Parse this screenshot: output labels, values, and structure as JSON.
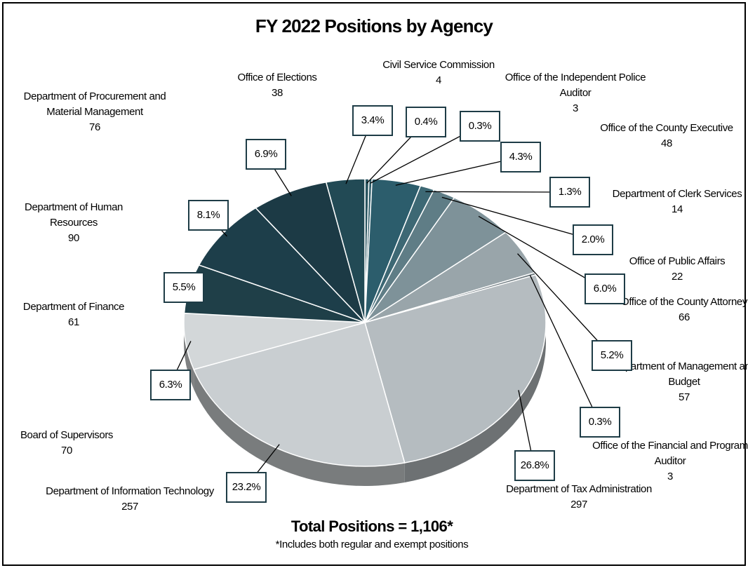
{
  "chart_data": {
    "type": "pie",
    "title": "FY 2022 Positions by Agency",
    "categories": [
      "Civil Service Commission",
      "Office of the Independent Police Auditor",
      "Office of the County Executive",
      "Department of Clerk Services",
      "Office of Public Affairs",
      "Office of the County Attorney",
      "Department of Management and Budget",
      "Office of the Financial and Program Auditor",
      "Department of Tax Administration",
      "Department of Information Technology",
      "Board of Supervisors",
      "Department of Finance",
      "Department of Human Resources",
      "Department of Procurement and Material Management",
      "Office of Elections"
    ],
    "values": [
      4,
      3,
      48,
      14,
      22,
      66,
      57,
      3,
      297,
      257,
      70,
      61,
      90,
      76,
      38
    ],
    "percentages": [
      {
        "value": 0.4,
        "label": "0.4%"
      },
      {
        "value": 0.3,
        "label": "0.3%"
      },
      {
        "value": 4.3,
        "label": "4.3%"
      },
      {
        "value": 1.3,
        "label": "1.3%"
      },
      {
        "value": 2.0,
        "label": "2.0%"
      },
      {
        "value": 6.0,
        "label": "6.0%"
      },
      {
        "value": 5.2,
        "label": "5.2%"
      },
      {
        "value": 0.3,
        "label": "0.3%"
      },
      {
        "value": 26.8,
        "label": "26.8%"
      },
      {
        "value": 23.2,
        "label": "23.2%"
      },
      {
        "value": 6.3,
        "label": "6.3%"
      },
      {
        "value": 5.5,
        "label": "5.5%"
      },
      {
        "value": 8.1,
        "label": "8.1%"
      },
      {
        "value": 6.9,
        "label": "6.9%"
      },
      {
        "value": 3.4,
        "label": "3.4%"
      }
    ],
    "colors": [
      "#2a5560",
      "#2b5a66",
      "#2c5d6c",
      "#3d6874",
      "#5f7d86",
      "#7e9299",
      "#99a5aa",
      "#6e7a80",
      "#b5bcc0",
      "#c9ced1",
      "#d3d7d9",
      "#1f3f48",
      "#1d3e4a",
      "#1c3a45",
      "#224a55"
    ],
    "total": "Total Positions = 1,106*",
    "footnote": "*Includes both regular and exempt positions"
  }
}
